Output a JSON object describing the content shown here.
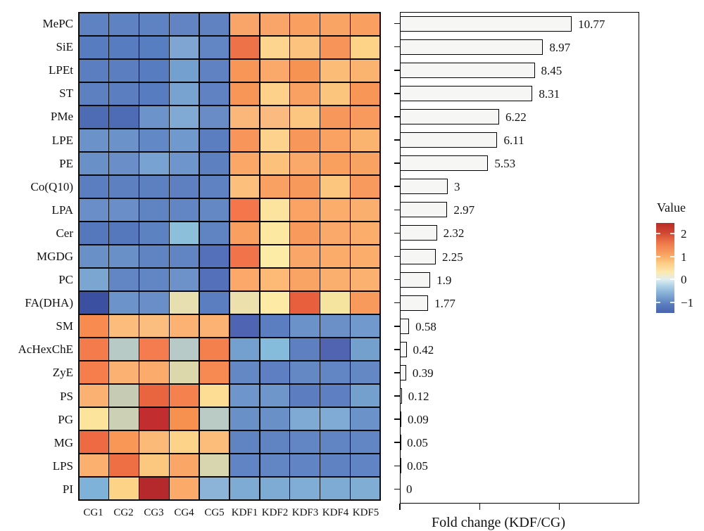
{
  "chart_data": [
    {
      "type": "heatmap",
      "rows": [
        "MePC",
        "SiE",
        "LPEt",
        "ST",
        "PMe",
        "LPE",
        "PE",
        "Co(Q10)",
        "LPA",
        "Cer",
        "MGDG",
        "PC",
        "FA(DHA)",
        "SM",
        "AcHexChE",
        "ZyE",
        "PS",
        "PG",
        "MG",
        "LPS",
        "PI"
      ],
      "columns": [
        "CG1",
        "CG2",
        "CG3",
        "CG4",
        "CG5",
        "KDF1",
        "KDF2",
        "KDF3",
        "KDF4",
        "KDF5"
      ],
      "values_est": [
        [
          -0.8,
          -0.8,
          -0.8,
          -0.75,
          -0.8,
          0.9,
          0.9,
          0.95,
          0.9,
          0.95
        ],
        [
          -0.85,
          -0.85,
          -0.85,
          -0.5,
          -0.78,
          1.5,
          0.55,
          0.65,
          1.05,
          0.55
        ],
        [
          -0.85,
          -0.85,
          -0.87,
          -0.55,
          -0.8,
          1.05,
          0.88,
          1.06,
          0.7,
          0.76
        ],
        [
          -0.83,
          -0.85,
          -0.87,
          -0.55,
          -0.8,
          1.05,
          0.56,
          0.94,
          0.64,
          1.05
        ],
        [
          -1.05,
          -1.05,
          -0.65,
          -0.45,
          -0.7,
          0.72,
          0.68,
          0.62,
          1.0,
          1.0
        ],
        [
          -0.65,
          -0.65,
          -0.75,
          -0.6,
          -0.85,
          1.06,
          0.56,
          1.02,
          0.93,
          0.76
        ],
        [
          -0.66,
          -0.67,
          -0.55,
          -0.62,
          -0.82,
          0.88,
          0.66,
          0.87,
          0.95,
          0.92
        ],
        [
          -0.85,
          -0.84,
          -0.84,
          -0.83,
          -0.8,
          0.66,
          0.93,
          1.0,
          0.63,
          1.0
        ],
        [
          -0.68,
          -0.68,
          -0.79,
          -0.77,
          -0.75,
          1.42,
          0.45,
          0.9,
          0.82,
          0.8
        ],
        [
          -0.95,
          -0.95,
          -0.84,
          -0.35,
          -0.79,
          0.95,
          0.42,
          1.0,
          0.86,
          0.82
        ],
        [
          -0.66,
          -0.66,
          -0.79,
          -0.79,
          -0.97,
          1.44,
          0.4,
          0.88,
          0.84,
          0.82
        ],
        [
          -0.52,
          -0.78,
          -0.78,
          -0.66,
          -0.97,
          0.86,
          0.7,
          0.9,
          0.8,
          0.78
        ],
        [
          -1.33,
          -0.63,
          -0.67,
          0.32,
          -0.85,
          0.3,
          0.4,
          1.63,
          0.36,
          1.0
        ],
        [
          1.16,
          0.68,
          0.67,
          0.78,
          0.77,
          -1.04,
          -0.85,
          -0.65,
          -0.66,
          -0.6
        ],
        [
          1.33,
          -0.18,
          1.33,
          -0.18,
          1.3,
          -0.56,
          -0.38,
          -0.8,
          -1.04,
          -0.56
        ],
        [
          1.31,
          0.78,
          0.84,
          0.22,
          1.18,
          -0.76,
          -0.81,
          -0.76,
          -0.78,
          -0.76
        ],
        [
          0.78,
          -0.12,
          1.56,
          1.3,
          0.5,
          -0.62,
          -0.62,
          -0.84,
          -0.8,
          -0.55
        ],
        [
          0.46,
          -0.1,
          2.2,
          1.1,
          -0.2,
          -0.66,
          -0.66,
          -0.48,
          -0.48,
          -0.65
        ],
        [
          1.5,
          1.02,
          0.7,
          0.55,
          0.68,
          -0.79,
          -0.79,
          -0.78,
          -0.78,
          -0.78
        ],
        [
          0.8,
          1.46,
          0.62,
          0.88,
          0.22,
          -0.78,
          -0.78,
          -0.78,
          -0.8,
          -0.78
        ],
        [
          -0.45,
          0.55,
          2.3,
          0.85,
          -0.43,
          -0.48,
          -0.48,
          -0.47,
          -0.48,
          -0.48
        ]
      ],
      "cell_colors": [
        [
          "#5e82c2",
          "#5e82c2",
          "#5e82c2",
          "#6284c2",
          "#6082c0",
          "#f9a468",
          "#f9a468",
          "#f9a060",
          "#f9a464",
          "#f9a060"
        ],
        [
          "#587cc0",
          "#587cc0",
          "#587ec2",
          "#7fa6d2",
          "#6286c4",
          "#ee7248",
          "#fdd58e",
          "#fcc37e",
          "#f7945a",
          "#fdd388"
        ],
        [
          "#5a7ec0",
          "#5a7ec0",
          "#587cc0",
          "#74a0d0",
          "#6082c2",
          "#f79656",
          "#faa96a",
          "#f79352",
          "#fbbc78",
          "#fbb470"
        ],
        [
          "#5c80c0",
          "#5a7ec0",
          "#587cc0",
          "#78a2d0",
          "#6082c2",
          "#f79656",
          "#fdd18a",
          "#f9a162",
          "#fcc57e",
          "#f79656"
        ],
        [
          "#4d6cb4",
          "#4e6cb6",
          "#6c94ca",
          "#80aad4",
          "#6a8cc6",
          "#fbb679",
          "#fbbb80",
          "#fcc680",
          "#f8975c",
          "#f89a5e"
        ],
        [
          "#6c92ca",
          "#6c92ca",
          "#6288c6",
          "#7099ce",
          "#5a7ec0",
          "#f8955a",
          "#fdd28c",
          "#f8975a",
          "#f9a262",
          "#fbb470"
        ],
        [
          "#6a90c8",
          "#6a8ec8",
          "#78a2d2",
          "#6e96cc",
          "#5c80c0",
          "#faa768",
          "#fcc27c",
          "#faa96a",
          "#f9a05e",
          "#f9a362"
        ],
        [
          "#5a7ec0",
          "#5c80c0",
          "#5c80c0",
          "#5e80c0",
          "#5e82c2",
          "#fcc07c",
          "#f9a162",
          "#f8995c",
          "#fcc67e",
          "#f8995e"
        ],
        [
          "#6a8ec8",
          "#6a8ec8",
          "#6084c2",
          "#6286c4",
          "#6488c4",
          "#f4764a",
          "#fde49e",
          "#faa365",
          "#fbad6c",
          "#fbaf6e"
        ],
        [
          "#5578bc",
          "#5578bc",
          "#5c82c2",
          "#8cc0da",
          "#6084c2",
          "#f9a060",
          "#fde8a2",
          "#f89a5c",
          "#faa96a",
          "#fbad6c"
        ],
        [
          "#6a90c8",
          "#6a90c8",
          "#6084c2",
          "#6184c2",
          "#5570ba",
          "#f0734a",
          "#fdeca6",
          "#faa668",
          "#fbab6a",
          "#fbad6c"
        ],
        [
          "#7ba6d2",
          "#6286c4",
          "#6286c4",
          "#6c92c9",
          "#5570ba",
          "#fba86a",
          "#fcba76",
          "#f9a464",
          "#fbaf6e",
          "#fbb170"
        ],
        [
          "#3c50a2",
          "#6d94ca",
          "#6a8ec7",
          "#e8dfb0",
          "#5a7ec0",
          "#ece0ac",
          "#fdeaa4",
          "#e85f3e",
          "#f5e4a0",
          "#f89a5c"
        ],
        [
          "#f78b50",
          "#fcbd7c",
          "#fcbe7e",
          "#fbb272",
          "#fbb273",
          "#5064b4",
          "#5a7ec0",
          "#6c92ca",
          "#6b90c8",
          "#7199ce"
        ],
        [
          "#f47c4c",
          "#b8cac6",
          "#f47c4e",
          "#b8cac8",
          "#f4804e",
          "#74a0d0",
          "#85bcdc",
          "#5e80c0",
          "#5064b2",
          "#74a0ce"
        ],
        [
          "#f57e4c",
          "#fbb172",
          "#fbab6c",
          "#dcd8ac",
          "#f68a52",
          "#6488c4",
          "#5e80c2",
          "#6488c4",
          "#6286c4",
          "#6488c4"
        ],
        [
          "#fbb172",
          "#c6ccb4",
          "#e9653f",
          "#f5814e",
          "#fddd94",
          "#6e96cc",
          "#6e96ca",
          "#5c7ec0",
          "#5e80c2",
          "#74a0ce"
        ],
        [
          "#fde49c",
          "#ccd0b4",
          "#c22d30",
          "#f79150",
          "#b9cbc4",
          "#6a90c8",
          "#6a90c8",
          "#7eaad4",
          "#7fabd4",
          "#6c92ca"
        ],
        [
          "#ed6a42",
          "#f89756",
          "#fcba78",
          "#fdd38a",
          "#fcbd7a",
          "#6084c2",
          "#6084c2",
          "#6286c4",
          "#6185c3",
          "#6286c4"
        ],
        [
          "#fbb06f",
          "#ee6f44",
          "#fcc77f",
          "#faa667",
          "#d8d6ae",
          "#6185c4",
          "#6285c4",
          "#6185c4",
          "#5e82c2",
          "#6185c4"
        ],
        [
          "#7fb2d8",
          "#fdd388",
          "#b5282c",
          "#fbaa6a",
          "#8cb4d8",
          "#7dabd4",
          "#7dabd4",
          "#7fadd6",
          "#7dabd4",
          "#7fadd4"
        ]
      ],
      "colorbar": {
        "title": "Value",
        "tick_labels": [
          "2",
          "1",
          "0",
          "−1"
        ],
        "tick_values": [
          2,
          1,
          0,
          -1
        ],
        "domain": [
          -1.45,
          2.45
        ],
        "gradient_top_to_bottom": [
          {
            "pct": 0,
            "color": "#b92b27"
          },
          {
            "pct": 10,
            "color": "#cf4431"
          },
          {
            "pct": 23,
            "color": "#ef7a4c"
          },
          {
            "pct": 36,
            "color": "#f9a765"
          },
          {
            "pct": 45,
            "color": "#fdcd86"
          },
          {
            "pct": 55,
            "color": "#fbeab2"
          },
          {
            "pct": 63,
            "color": "#dfecf1"
          },
          {
            "pct": 70,
            "color": "#aed1e6"
          },
          {
            "pct": 80,
            "color": "#7fa8d2"
          },
          {
            "pct": 91,
            "color": "#577bbe"
          },
          {
            "pct": 100,
            "color": "#4a63ae"
          }
        ]
      },
      "grid_line_color": "#0a0a0a"
    },
    {
      "type": "bar",
      "orientation": "horizontal",
      "categories": [
        "MePC",
        "SiE",
        "LPEt",
        "ST",
        "PMe",
        "LPE",
        "PE",
        "Co(Q10)",
        "LPA",
        "Cer",
        "MGDG",
        "PC",
        "FA(DHA)",
        "SM",
        "AcHexChE",
        "ZyE",
        "PS",
        "PG",
        "MG",
        "LPS",
        "PI"
      ],
      "values": [
        10.77,
        8.97,
        8.45,
        8.31,
        6.22,
        6.11,
        5.53,
        3,
        2.97,
        2.32,
        2.25,
        1.9,
        1.77,
        0.58,
        0.42,
        0.39,
        0.12,
        0.09,
        0.05,
        0.05,
        0
      ],
      "value_labels": [
        "10.77",
        "8.97",
        "8.45",
        "8.31",
        "6.22",
        "6.11",
        "5.53",
        "3",
        "2.97",
        "2.32",
        "2.25",
        "1.9",
        "1.77",
        "0.58",
        "0.42",
        "0.39",
        "0.12",
        "0.09",
        "0.05",
        "0.05",
        "0"
      ],
      "xlabel": "Fold change (KDF/CG)",
      "xlim": [
        0,
        15
      ],
      "xticks": [
        0,
        5,
        10
      ],
      "bar_fill": "#f6f6f4",
      "bar_border": "#000000",
      "panel_border": "#000000"
    }
  ]
}
